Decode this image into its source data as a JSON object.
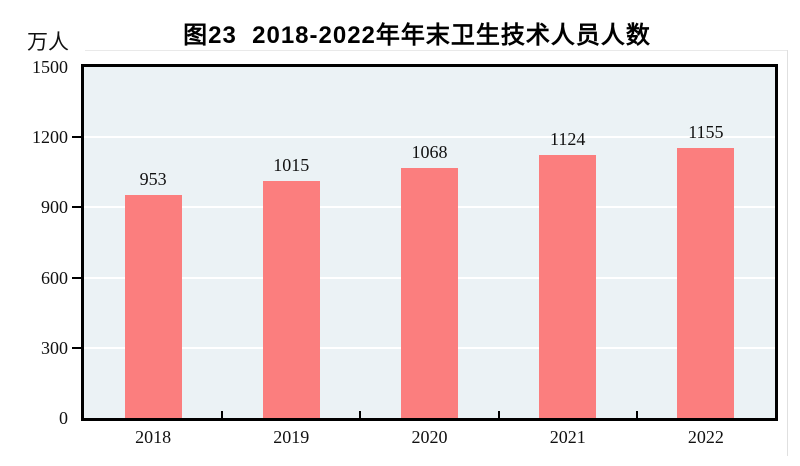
{
  "chart_data": {
    "type": "bar",
    "title": "图23  2018-2022年年末卫生技术人员人数",
    "unit_label": "万人",
    "categories": [
      "2018",
      "2019",
      "2020",
      "2021",
      "2022"
    ],
    "values": [
      953,
      1015,
      1068,
      1124,
      1155
    ],
    "xlabel": "",
    "ylabel": "万人",
    "ylim": [
      0,
      1500
    ],
    "yticks": [
      0,
      300,
      600,
      900,
      1200,
      1500
    ],
    "grid": true,
    "legend_position": "none",
    "colors": {
      "bar": "#fb7e7e",
      "plot_background": "#ebf2f5",
      "axis": "#000000",
      "gridline": "#ffffff",
      "text": "#111111",
      "title_divider": "#e9e9e9"
    }
  }
}
